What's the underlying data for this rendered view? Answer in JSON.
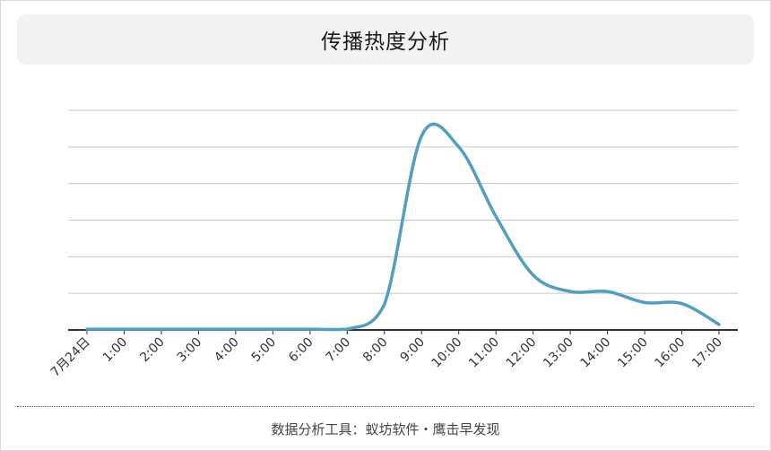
{
  "title": "传播热度分析",
  "footer": "数据分析工具：蚁坊软件・鹰击早发现",
  "colors": {
    "line": "#4f9fc4",
    "grid": "#c8c8c8",
    "axis": "#333333",
    "title_bg": "#f2f2f2"
  },
  "chart_data": {
    "type": "line",
    "title": "传播热度分析",
    "xlabel": "",
    "ylabel": "",
    "grid": true,
    "legend": "none",
    "categories": [
      "7月24日",
      "1:00",
      "2:00",
      "3:00",
      "4:00",
      "5:00",
      "6:00",
      "7:00",
      "8:00",
      "9:00",
      "10:00",
      "11:00",
      "12:00",
      "13:00",
      "14:00",
      "15:00",
      "16:00",
      "17:00"
    ],
    "ylim": [
      0,
      6
    ],
    "series": [
      {
        "values": [
          0.02,
          0.02,
          0.02,
          0.02,
          0.02,
          0.02,
          0.02,
          0.02,
          0.7,
          5.3,
          5.0,
          3.1,
          1.5,
          1.05,
          1.05,
          0.75,
          0.72,
          0.15
        ]
      }
    ]
  }
}
